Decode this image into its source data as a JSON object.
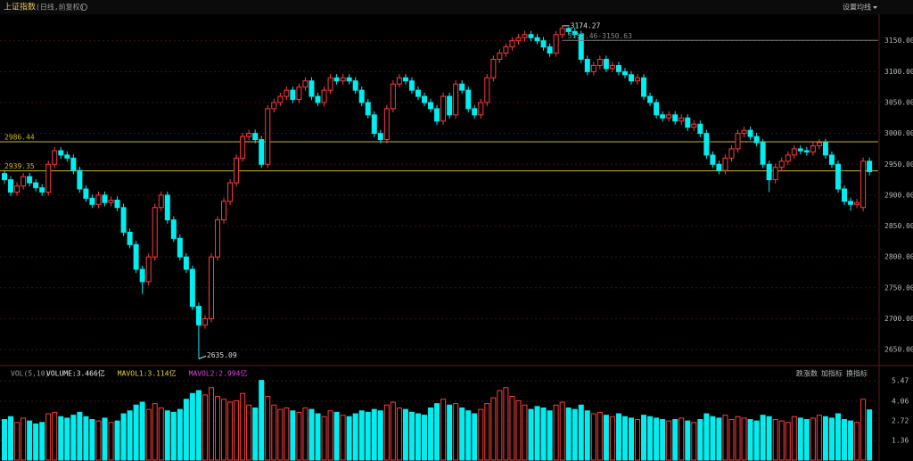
{
  "header": {
    "title": "上证指数",
    "subtitle": "(日线,前复权)",
    "settings": "设置均线"
  },
  "chart_data": [
    {
      "type": "candlestick",
      "open": [
        2935,
        2925,
        2905,
        2915,
        2930,
        2920,
        2912,
        2905,
        2950,
        2972,
        2965,
        2960,
        2940,
        2910,
        2895,
        2885,
        2900,
        2888,
        2892,
        2880,
        2840,
        2820,
        2780,
        2760,
        2800,
        2880,
        2900,
        2860,
        2830,
        2800,
        2780,
        2720,
        2690,
        2700,
        2800,
        2860,
        2890,
        2920,
        2960,
        2995,
        3000,
        2990,
        2950,
        3040,
        3050,
        3060,
        3070,
        3055,
        3075,
        3085,
        3060,
        3050,
        3070,
        3090,
        3085,
        3090,
        3085,
        3070,
        3050,
        3030,
        3000,
        2990,
        3040,
        3080,
        3090,
        3085,
        3070,
        3060,
        3050,
        3040,
        3020,
        3060,
        3030,
        3080,
        3070,
        3040,
        3030,
        3050,
        3090,
        3120,
        3130,
        3140,
        3150,
        3155,
        3160,
        3155,
        3150,
        3140,
        3130,
        3160,
        3170,
        3165,
        3160,
        3120,
        3100,
        3110,
        3120,
        3105,
        3110,
        3100,
        3095,
        3085,
        3090,
        3060,
        3050,
        3030,
        3025,
        3030,
        3020,
        3025,
        3010,
        3015,
        3000,
        2965,
        2950,
        2940,
        2960,
        2975,
        3000,
        3005,
        2995,
        2985,
        2950,
        2925,
        2945,
        2955,
        2965,
        2975,
        2972,
        2970,
        2980,
        2985,
        2965,
        2950,
        2910,
        2890,
        2885,
        2880,
        2955
      ],
      "high": [
        2941,
        2931,
        2921,
        2936,
        2936,
        2926,
        2918,
        2956,
        2978,
        2978,
        2971,
        2966,
        2946,
        2916,
        2901,
        2906,
        2906,
        2898,
        2898,
        2886,
        2846,
        2826,
        2786,
        2806,
        2886,
        2906,
        2906,
        2866,
        2836,
        2806,
        2786,
        2726,
        2706,
        2806,
        2866,
        2896,
        2926,
        2966,
        3001,
        3006,
        3006,
        2996,
        3046,
        3056,
        3066,
        3076,
        3076,
        3081,
        3091,
        3091,
        3066,
        3076,
        3096,
        3096,
        3096,
        3096,
        3091,
        3076,
        3056,
        3036,
        3006,
        3046,
        3086,
        3096,
        3096,
        3091,
        3076,
        3066,
        3056,
        3046,
        3066,
        3066,
        3086,
        3086,
        3076,
        3046,
        3056,
        3096,
        3126,
        3136,
        3146,
        3156,
        3161,
        3166,
        3166,
        3161,
        3156,
        3146,
        3166,
        3174.27,
        3172,
        3171,
        3166,
        3126,
        3116,
        3126,
        3126,
        3116,
        3116,
        3106,
        3101,
        3096,
        3096,
        3066,
        3056,
        3036,
        3036,
        3036,
        3031,
        3031,
        3021,
        3021,
        3006,
        2971,
        2956,
        2966,
        2981,
        3006,
        3011,
        3011,
        3001,
        2991,
        2956,
        2951,
        2961,
        2971,
        2981,
        2981,
        2978,
        2986,
        2991,
        2991,
        2971,
        2956,
        2916,
        2896,
        2894,
        2961,
        2961
      ],
      "low": [
        2919,
        2899,
        2899,
        2909,
        2914,
        2906,
        2899,
        2899,
        2944,
        2959,
        2954,
        2934,
        2904,
        2889,
        2879,
        2879,
        2882,
        2882,
        2874,
        2834,
        2814,
        2774,
        2740,
        2754,
        2794,
        2874,
        2854,
        2824,
        2794,
        2774,
        2714,
        2635.09,
        2684,
        2694,
        2794,
        2854,
        2884,
        2914,
        2954,
        2989,
        2984,
        2944,
        2944,
        3034,
        3044,
        3054,
        3049,
        3049,
        3069,
        3054,
        3044,
        3044,
        3064,
        3079,
        3079,
        3079,
        3064,
        3044,
        3024,
        2994,
        2984,
        2984,
        3034,
        3074,
        3079,
        3064,
        3054,
        3044,
        3034,
        3014,
        3014,
        3024,
        3024,
        3064,
        3034,
        3024,
        3024,
        3044,
        3084,
        3114,
        3124,
        3134,
        3144,
        3149,
        3149,
        3144,
        3134,
        3124,
        3124,
        3154,
        3159,
        3154,
        3114,
        3094,
        3094,
        3104,
        3099,
        3099,
        3094,
        3089,
        3079,
        3079,
        3054,
        3044,
        3024,
        3019,
        3019,
        3014,
        3014,
        3004,
        3004,
        2994,
        2959,
        2944,
        2934,
        2934,
        2954,
        2969,
        2994,
        2989,
        2979,
        2944,
        2905,
        2919,
        2939,
        2949,
        2959,
        2966,
        2964,
        2964,
        2974,
        2959,
        2944,
        2904,
        2884,
        2875,
        2879,
        2874,
        2932
      ],
      "close": [
        2925,
        2905,
        2915,
        2930,
        2920,
        2912,
        2905,
        2950,
        2972,
        2965,
        2960,
        2940,
        2910,
        2895,
        2885,
        2900,
        2888,
        2892,
        2880,
        2840,
        2820,
        2780,
        2760,
        2800,
        2880,
        2900,
        2860,
        2830,
        2800,
        2780,
        2720,
        2690,
        2700,
        2800,
        2860,
        2890,
        2920,
        2960,
        2995,
        3000,
        2990,
        2950,
        3040,
        3050,
        3060,
        3070,
        3055,
        3075,
        3085,
        3060,
        3050,
        3070,
        3090,
        3085,
        3090,
        3085,
        3070,
        3050,
        3030,
        3000,
        2990,
        3040,
        3080,
        3090,
        3085,
        3070,
        3060,
        3050,
        3040,
        3020,
        3060,
        3030,
        3080,
        3070,
        3040,
        3030,
        3050,
        3090,
        3120,
        3130,
        3140,
        3150,
        3155,
        3160,
        3155,
        3150,
        3140,
        3130,
        3160,
        3170,
        3165,
        3160,
        3120,
        3100,
        3110,
        3120,
        3105,
        3110,
        3100,
        3095,
        3085,
        3090,
        3060,
        3050,
        3030,
        3025,
        3030,
        3020,
        3025,
        3010,
        3015,
        3000,
        2965,
        2950,
        2940,
        2960,
        2975,
        3000,
        3005,
        2995,
        2985,
        2950,
        2925,
        2945,
        2955,
        2965,
        2975,
        2972,
        2970,
        2980,
        2985,
        2965,
        2950,
        2910,
        2890,
        2885,
        2888,
        2955,
        2938
      ],
      "up_color": "#ff3b3b",
      "down_color": "#00eef0",
      "ylim": [
        2627,
        3190
      ],
      "yticks": [
        {
          "value": 2650,
          "label": "2650.00"
        },
        {
          "value": 2700,
          "label": "2700.00"
        },
        {
          "value": 2750,
          "label": "2750.00"
        },
        {
          "value": 2800,
          "label": "2800.00"
        },
        {
          "value": 2850,
          "label": "2850.00"
        },
        {
          "value": 2900,
          "label": "2900.00"
        },
        {
          "value": 2950,
          "label": "2950.00"
        },
        {
          "value": 3000,
          "label": "3000.00"
        },
        {
          "value": 3050,
          "label": "3050.00"
        },
        {
          "value": 3100,
          "label": "3100.00"
        },
        {
          "value": 3150,
          "label": "3150.00"
        }
      ],
      "grid": true,
      "reference_lines": [
        {
          "value": 2986.44,
          "label": "2986.44"
        },
        {
          "value": 2939.35,
          "label": "2939.35"
        }
      ],
      "reference_color": "#c8b820",
      "max_label": {
        "value": 3174.27,
        "label": "3174.27"
      },
      "min_label": {
        "value": 2635.09,
        "label": "2635.09"
      },
      "range_label": {
        "value": 3150.63,
        "label": "3152.46-3150.63"
      }
    },
    {
      "type": "bar",
      "title": "VOL(5,10)",
      "legend": [
        {
          "label": "VOLUME:3.466亿",
          "color": "#e8e8e8"
        },
        {
          "label": "MAVOL1:3.114亿",
          "color": "#e8d030"
        },
        {
          "label": "MAVOL2:2.994亿",
          "color": "#e040e0"
        }
      ],
      "values": [
        2.8,
        3.0,
        2.6,
        2.9,
        2.7,
        2.5,
        2.6,
        3.2,
        3.3,
        3.0,
        2.9,
        3.1,
        3.3,
        3.0,
        2.8,
        2.7,
        2.9,
        2.6,
        2.7,
        3.2,
        3.4,
        3.8,
        4.0,
        3.5,
        3.9,
        3.6,
        3.4,
        3.3,
        3.5,
        4.2,
        4.6,
        4.8,
        4.5,
        5.0,
        4.4,
        4.2,
        4.0,
        4.1,
        4.6,
        3.8,
        3.6,
        5.5,
        4.4,
        3.8,
        3.5,
        3.6,
        3.4,
        3.3,
        3.6,
        3.5,
        3.2,
        3.0,
        3.4,
        3.3,
        3.1,
        3.0,
        3.2,
        3.4,
        3.3,
        3.5,
        3.4,
        3.8,
        4.0,
        3.6,
        3.5,
        3.3,
        3.2,
        3.1,
        3.6,
        3.9,
        4.2,
        3.8,
        3.9,
        3.6,
        3.4,
        3.2,
        3.5,
        3.9,
        4.3,
        4.8,
        5.0,
        4.4,
        4.1,
        3.8,
        3.5,
        3.7,
        3.6,
        3.4,
        3.8,
        4.0,
        3.6,
        3.5,
        3.8,
        3.4,
        3.2,
        3.3,
        3.1,
        3.0,
        3.2,
        3.0,
        2.9,
        2.8,
        3.1,
        3.0,
        2.9,
        2.8,
        2.7,
        2.8,
        2.9,
        2.7,
        2.6,
        2.8,
        3.2,
        3.0,
        2.9,
        3.1,
        2.8,
        3.0,
        2.9,
        2.8,
        2.7,
        3.1,
        3.0,
        2.8,
        2.7,
        2.6,
        3.0,
        2.9,
        2.8,
        2.9,
        3.1,
        3.0,
        2.9,
        3.2,
        2.8,
        2.7,
        2.6,
        4.2,
        3.466
      ],
      "ylim": [
        0,
        6.4
      ],
      "yticks": [
        1.36,
        2.72,
        4.06,
        5.47
      ],
      "toolbar": [
        "跌涨数",
        "加指标",
        "换指标"
      ]
    }
  ]
}
